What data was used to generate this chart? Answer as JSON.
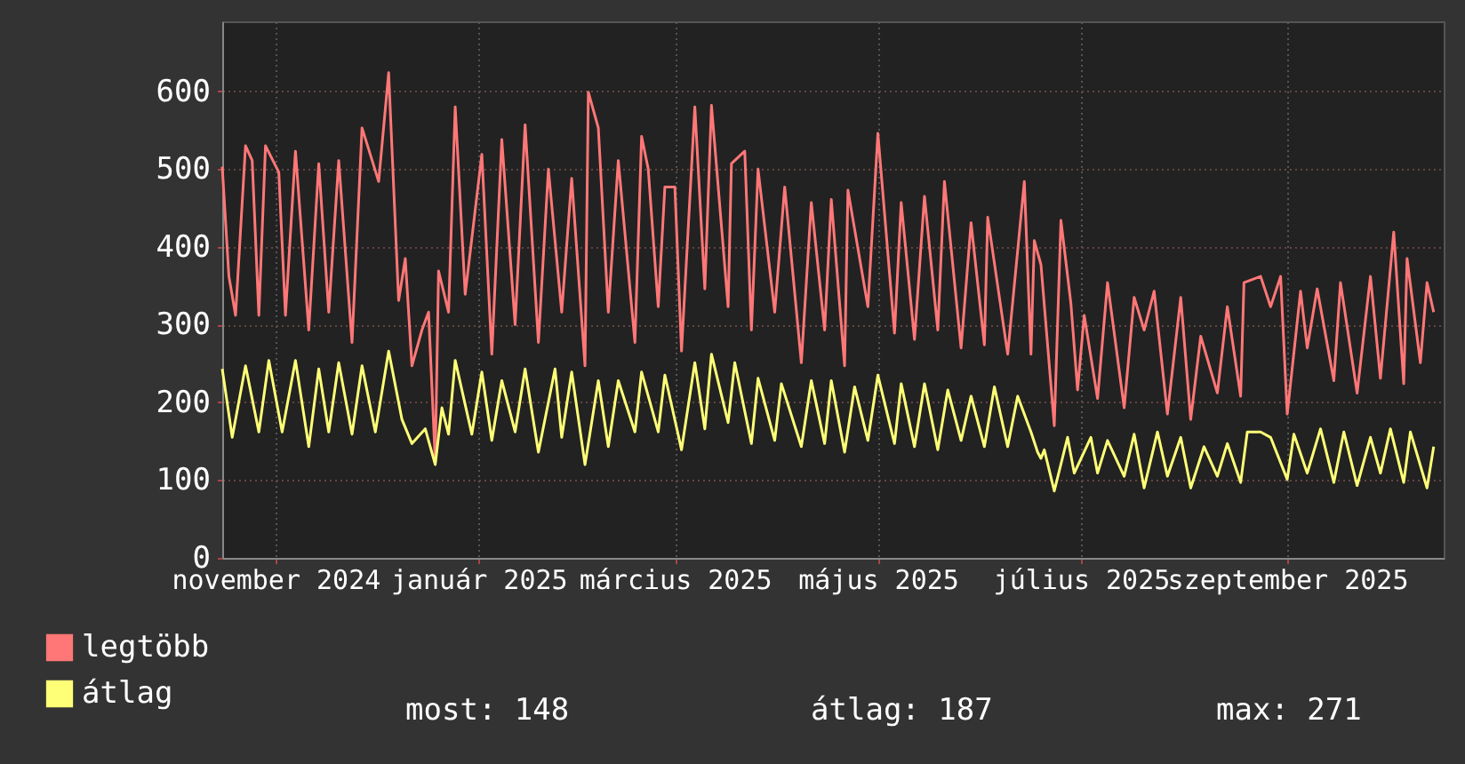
{
  "chart_data": {
    "type": "line",
    "legend": "bottom",
    "grid": true,
    "line_style": "solid",
    "marker": "none",
    "xlim": [
      "2024-10-30",
      "2025-11-01"
    ],
    "xticks": [
      {
        "value": "2024-11-15",
        "label": "november 2024"
      },
      {
        "value": "2025-01-15",
        "label": "január 2025"
      },
      {
        "value": "2025-03-15",
        "label": "március 2025"
      },
      {
        "value": "2025-05-15",
        "label": "május 2025"
      },
      {
        "value": "2025-07-15",
        "label": "július 2025"
      },
      {
        "value": "2025-09-15",
        "label": "szeptember 2025"
      }
    ],
    "ylim": [
      0,
      690
    ],
    "yticks": [
      0,
      100,
      200,
      300,
      400,
      500,
      600
    ],
    "annotations": [
      "most: 148",
      "átlag: 187",
      "max: 271"
    ],
    "series": [
      {
        "name": "legtöbb",
        "color": "#ff7777",
        "x": [
          "2024-10-30",
          "2024-11-01",
          "2024-11-03",
          "2024-11-06",
          "2024-11-08",
          "2024-11-10",
          "2024-11-12",
          "2024-11-16",
          "2024-11-18",
          "2024-11-21",
          "2024-11-25",
          "2024-11-28",
          "2024-12-01",
          "2024-12-04",
          "2024-12-08",
          "2024-12-11",
          "2024-12-16",
          "2024-12-19",
          "2024-12-22",
          "2024-12-24",
          "2024-12-26",
          "2024-12-29",
          "2024-12-31",
          "2025-01-02",
          "2025-01-03",
          "2025-01-06",
          "2025-01-08",
          "2025-01-11",
          "2025-01-16",
          "2025-01-19",
          "2025-01-22",
          "2025-01-26",
          "2025-01-29",
          "2025-02-02",
          "2025-02-05",
          "2025-02-09",
          "2025-02-12",
          "2025-02-16",
          "2025-02-17",
          "2025-02-20",
          "2025-02-23",
          "2025-02-26",
          "2025-03-03",
          "2025-03-05",
          "2025-03-07",
          "2025-03-10",
          "2025-03-12",
          "2025-03-15",
          "2025-03-17",
          "2025-03-21",
          "2025-03-24",
          "2025-03-26",
          "2025-03-31",
          "2025-04-01",
          "2025-04-05",
          "2025-04-07",
          "2025-04-09",
          "2025-04-14",
          "2025-04-17",
          "2025-04-22",
          "2025-04-25",
          "2025-04-29",
          "2025-05-01",
          "2025-05-05",
          "2025-05-06",
          "2025-05-12",
          "2025-05-15",
          "2025-05-20",
          "2025-05-22",
          "2025-05-26",
          "2025-05-29",
          "2025-06-02",
          "2025-06-04",
          "2025-06-09",
          "2025-06-12",
          "2025-06-16",
          "2025-06-17",
          "2025-06-23",
          "2025-06-28",
          "2025-06-30",
          "2025-07-01",
          "2025-07-03",
          "2025-07-07",
          "2025-07-09",
          "2025-07-12",
          "2025-07-14",
          "2025-07-16",
          "2025-07-20",
          "2025-07-23",
          "2025-07-28",
          "2025-07-31",
          "2025-08-03",
          "2025-08-06",
          "2025-08-10",
          "2025-08-14",
          "2025-08-17",
          "2025-08-20",
          "2025-08-25",
          "2025-08-28",
          "2025-09-01",
          "2025-09-02",
          "2025-09-07",
          "2025-09-10",
          "2025-09-13",
          "2025-09-15",
          "2025-09-19",
          "2025-09-21",
          "2025-09-24",
          "2025-09-29",
          "2025-10-01",
          "2025-10-06",
          "2025-10-10",
          "2025-10-13",
          "2025-10-17",
          "2025-10-20",
          "2025-10-21",
          "2025-10-25",
          "2025-10-27",
          "2025-10-29"
        ],
        "values": [
          503,
          362,
          312,
          530,
          511,
          312,
          530,
          496,
          312,
          523,
          293,
          507,
          316,
          511,
          277,
          553,
          484,
          624,
          331,
          385,
          247,
          293,
          316,
          124,
          369,
          316,
          580,
          339,
          519,
          262,
          538,
          300,
          557,
          277,
          500,
          316,
          488,
          247,
          599,
          553,
          316,
          511,
          277,
          542,
          500,
          323,
          477,
          477,
          266,
          580,
          346,
          582,
          323,
          507,
          523,
          293,
          500,
          316,
          477,
          251,
          457,
          293,
          461,
          247,
          473,
          323,
          546,
          289,
          457,
          281,
          465,
          293,
          484,
          270,
          431,
          274,
          438,
          262,
          484,
          262,
          408,
          377,
          170,
          434,
          327,
          216,
          312,
          205,
          354,
          193,
          335,
          293,
          343,
          185,
          335,
          178,
          285,
          212,
          323,
          208,
          354,
          362,
          323,
          362,
          185,
          343,
          270,
          346,
          228,
          354,
          212,
          362,
          231,
          419,
          224,
          385,
          251,
          354,
          316
        ]
      },
      {
        "name": "átlag",
        "color": "#ffff77",
        "x": [
          "2024-10-30",
          "2024-11-02",
          "2024-11-06",
          "2024-11-10",
          "2024-11-13",
          "2024-11-17",
          "2024-11-21",
          "2024-11-25",
          "2024-11-28",
          "2024-12-01",
          "2024-12-04",
          "2024-12-08",
          "2024-12-11",
          "2024-12-15",
          "2024-12-19",
          "2024-12-23",
          "2024-12-26",
          "2024-12-30",
          "2025-01-02",
          "2025-01-04",
          "2025-01-06",
          "2025-01-08",
          "2025-01-13",
          "2025-01-16",
          "2025-01-19",
          "2025-01-22",
          "2025-01-26",
          "2025-01-29",
          "2025-02-02",
          "2025-02-07",
          "2025-02-09",
          "2025-02-12",
          "2025-02-16",
          "2025-02-20",
          "2025-02-23",
          "2025-02-26",
          "2025-03-03",
          "2025-03-05",
          "2025-03-10",
          "2025-03-12",
          "2025-03-17",
          "2025-03-21",
          "2025-03-24",
          "2025-03-26",
          "2025-03-31",
          "2025-04-02",
          "2025-04-07",
          "2025-04-09",
          "2025-04-14",
          "2025-04-16",
          "2025-04-22",
          "2025-04-25",
          "2025-04-29",
          "2025-05-01",
          "2025-05-05",
          "2025-05-08",
          "2025-05-12",
          "2025-05-15",
          "2025-05-20",
          "2025-05-22",
          "2025-05-26",
          "2025-05-29",
          "2025-06-02",
          "2025-06-05",
          "2025-06-09",
          "2025-06-12",
          "2025-06-16",
          "2025-06-19",
          "2025-06-23",
          "2025-06-26",
          "2025-06-30",
          "2025-07-02",
          "2025-07-03",
          "2025-07-04",
          "2025-07-07",
          "2025-07-11",
          "2025-07-13",
          "2025-07-18",
          "2025-07-20",
          "2025-07-23",
          "2025-07-28",
          "2025-07-31",
          "2025-08-03",
          "2025-08-07",
          "2025-08-10",
          "2025-08-14",
          "2025-08-17",
          "2025-08-21",
          "2025-08-25",
          "2025-08-28",
          "2025-09-01",
          "2025-09-03",
          "2025-09-07",
          "2025-09-10",
          "2025-09-15",
          "2025-09-17",
          "2025-09-21",
          "2025-09-25",
          "2025-09-29",
          "2025-10-02",
          "2025-10-06",
          "2025-10-10",
          "2025-10-13",
          "2025-10-16",
          "2025-10-20",
          "2025-10-22",
          "2025-10-27",
          "2025-10-29"
        ],
        "values": [
          243,
          155,
          247,
          162,
          254,
          162,
          254,
          143,
          243,
          162,
          251,
          159,
          247,
          162,
          266,
          178,
          147,
          166,
          120,
          193,
          159,
          254,
          159,
          239,
          151,
          228,
          162,
          243,
          136,
          243,
          155,
          239,
          120,
          228,
          143,
          228,
          162,
          239,
          162,
          235,
          139,
          251,
          166,
          262,
          174,
          251,
          147,
          231,
          151,
          224,
          143,
          228,
          147,
          228,
          136,
          220,
          151,
          235,
          147,
          224,
          143,
          224,
          139,
          216,
          151,
          208,
          143,
          220,
          143,
          208,
          162,
          136,
          128,
          139,
          86,
          155,
          109,
          155,
          109,
          151,
          105,
          159,
          90,
          162,
          105,
          155,
          90,
          143,
          105,
          147,
          97,
          162,
          162,
          155,
          101,
          159,
          109,
          166,
          97,
          162,
          93,
          155,
          109,
          166,
          97,
          162,
          90,
          143
        ]
      }
    ]
  }
}
